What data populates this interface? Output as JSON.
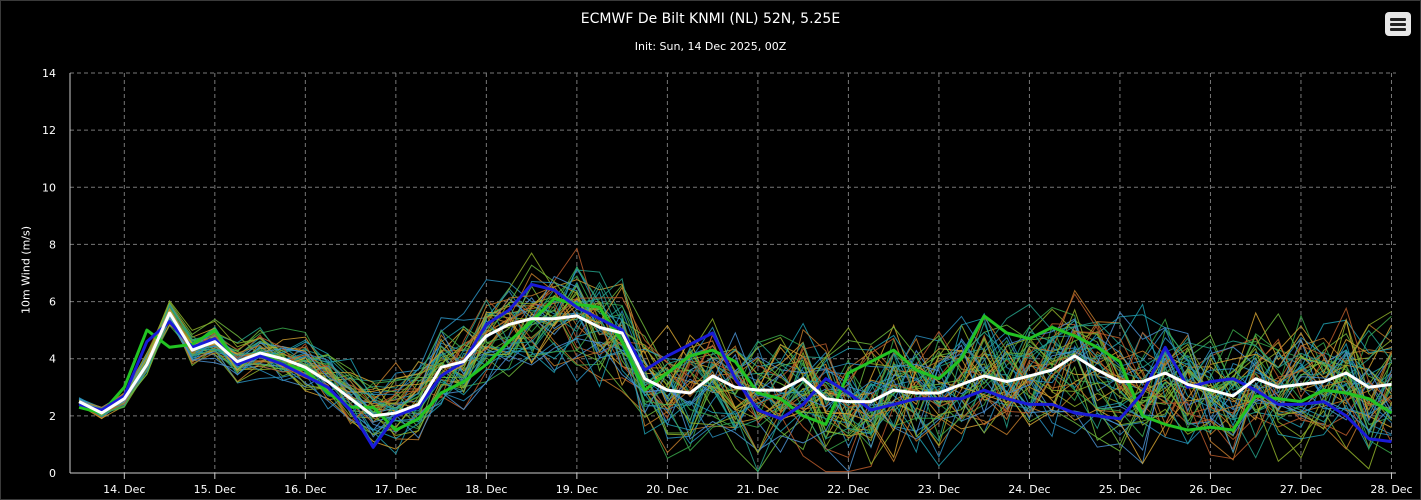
{
  "chart_data": {
    "type": "line",
    "title": "ECMWF De Bilt KNMI (NL) 52N, 5.25E",
    "subtitle": "Init: Sun, 14 Dec 2025, 00Z",
    "ylabel": "10m Wind (m/s)",
    "ylim": [
      0,
      14
    ],
    "yticks": [
      0,
      2,
      4,
      6,
      8,
      10,
      12,
      14
    ],
    "xlim": [
      -0.6,
      14.05
    ],
    "xticks": [
      0,
      1,
      2,
      3,
      4,
      5,
      6,
      7,
      8,
      9,
      10,
      11,
      12,
      13,
      14
    ],
    "xtick_labels": [
      "14. Dec",
      "15. Dec",
      "16. Dec",
      "17. Dec",
      "18. Dec",
      "19. Dec",
      "20. Dec",
      "21. Dec",
      "22. Dec",
      "23. Dec",
      "24. Dec",
      "25. Dec",
      "26. Dec",
      "27. Dec",
      "28. Dec"
    ],
    "grid": true,
    "ensemble_colors": [
      "#1f9fb0",
      "#2a8fc0",
      "#3aa84a",
      "#6fb83c",
      "#c07a2a",
      "#d0a030",
      "#b85a2a",
      "#8fb02a",
      "#25a088",
      "#4a90d0"
    ],
    "highlighted_series": [
      {
        "color": "#ffffff",
        "width": 3,
        "x": [
          -0.5,
          -0.25,
          0,
          0.25,
          0.5,
          0.75,
          1,
          1.25,
          1.5,
          1.75,
          2,
          2.25,
          2.5,
          2.75,
          3,
          3.25,
          3.5,
          3.75,
          4,
          4.25,
          4.5,
          4.75,
          5,
          5.25,
          5.5,
          5.75,
          6,
          6.25,
          6.5,
          6.75,
          7,
          7.25,
          7.5,
          7.75,
          8,
          8.25,
          8.5,
          8.75,
          9,
          9.25,
          9.5,
          9.75,
          10,
          10.25,
          10.5,
          10.75,
          11,
          11.25,
          11.5,
          11.75,
          12,
          12.25,
          12.5,
          12.75,
          13,
          13.25,
          13.5,
          13.75,
          14
        ],
        "y": [
          2.5,
          2.1,
          2.6,
          3.8,
          5.6,
          4.3,
          4.6,
          3.9,
          4.2,
          4.0,
          3.7,
          3.2,
          2.6,
          2.0,
          2.1,
          2.4,
          3.7,
          3.9,
          4.8,
          5.2,
          5.4,
          5.4,
          5.5,
          5.1,
          4.9,
          3.3,
          2.9,
          2.8,
          3.4,
          3.0,
          2.9,
          2.9,
          3.3,
          2.6,
          2.5,
          2.5,
          2.9,
          2.8,
          2.8,
          3.1,
          3.4,
          3.2,
          3.4,
          3.6,
          4.1,
          3.6,
          3.2,
          3.2,
          3.5,
          3.1,
          2.9,
          2.7,
          3.3,
          3.0,
          3.1,
          3.2,
          3.5,
          3.0,
          3.1
        ]
      },
      {
        "color": "#1a1ad8",
        "width": 3,
        "x": [
          -0.5,
          -0.25,
          0,
          0.25,
          0.5,
          0.75,
          1,
          1.25,
          1.5,
          1.75,
          2,
          2.25,
          2.5,
          2.75,
          3,
          3.25,
          3.5,
          3.75,
          4,
          4.25,
          4.5,
          4.75,
          5,
          5.25,
          5.5,
          5.75,
          6,
          6.25,
          6.5,
          6.75,
          7,
          7.25,
          7.5,
          7.75,
          8,
          8.25,
          8.5,
          8.75,
          9,
          9.25,
          9.5,
          9.75,
          10,
          10.25,
          10.5,
          10.75,
          11,
          11.25,
          11.5,
          11.75,
          12,
          12.25,
          12.5,
          12.75,
          13,
          13.25,
          13.5,
          13.75,
          14
        ],
        "y": [
          2.4,
          2.2,
          2.7,
          4.6,
          5.3,
          4.4,
          4.7,
          3.8,
          4.1,
          3.8,
          3.4,
          3.0,
          2.2,
          0.9,
          2.0,
          2.3,
          3.4,
          3.9,
          5.2,
          5.7,
          6.6,
          6.4,
          5.8,
          5.4,
          5.0,
          3.6,
          4.1,
          4.5,
          4.9,
          3.3,
          2.2,
          1.9,
          2.4,
          3.3,
          2.8,
          2.2,
          2.4,
          2.6,
          2.6,
          2.6,
          2.9,
          2.6,
          2.4,
          2.4,
          2.1,
          2.0,
          1.9,
          2.8,
          4.4,
          3.0,
          3.2,
          3.3,
          2.9,
          2.4,
          2.4,
          2.5,
          2.0,
          1.2,
          1.1
        ]
      },
      {
        "color": "#22c322",
        "width": 3,
        "x": [
          -0.5,
          -0.25,
          0,
          0.25,
          0.5,
          0.75,
          1,
          1.25,
          1.5,
          1.75,
          2,
          2.25,
          2.5,
          2.75,
          3,
          3.25,
          3.5,
          3.75,
          4,
          4.25,
          4.5,
          4.75,
          5,
          5.25,
          5.5,
          5.75,
          6,
          6.25,
          6.5,
          6.75,
          7,
          7.25,
          7.5,
          7.75,
          8,
          8.25,
          8.5,
          8.75,
          9,
          9.25,
          9.5,
          9.75,
          10,
          10.25,
          10.5,
          10.75,
          11,
          11.25,
          11.5,
          11.75,
          12,
          12.25,
          12.5,
          12.75,
          13,
          13.25,
          13.5,
          13.75,
          14
        ],
        "y": [
          2.3,
          2.1,
          3.0,
          5.0,
          4.4,
          4.5,
          5.0,
          3.8,
          4.2,
          3.8,
          3.6,
          2.8,
          2.3,
          2.3,
          1.5,
          1.9,
          2.8,
          3.2,
          3.8,
          4.6,
          5.3,
          6.1,
          5.9,
          5.8,
          4.6,
          2.9,
          3.5,
          4.1,
          4.3,
          3.9,
          2.8,
          2.6,
          2.0,
          1.7,
          3.5,
          3.9,
          4.3,
          3.6,
          3.3,
          4.0,
          5.5,
          4.9,
          4.7,
          5.1,
          4.8,
          4.4,
          3.9,
          2.0,
          1.7,
          1.5,
          1.6,
          1.5,
          2.7,
          2.6,
          2.5,
          2.9,
          2.8,
          2.6,
          2.1
        ]
      }
    ]
  },
  "toolbar": {
    "menu_icon": "hamburger-menu-icon"
  }
}
